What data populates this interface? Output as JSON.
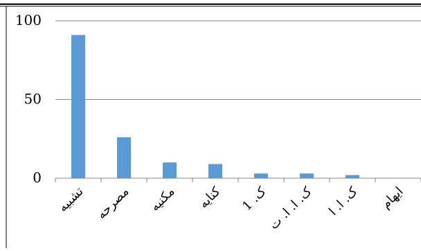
{
  "chart_data": {
    "type": "bar",
    "categories": [
      "تشبیه",
      "مصرحه",
      "مکنیه",
      "کنایه",
      "ک. 1",
      "ک. ا. ا. ت",
      "ک. ا. ا",
      "ایهام"
    ],
    "values": [
      91,
      26,
      10,
      9,
      3,
      3,
      2,
      0
    ],
    "ylim": [
      0,
      100
    ],
    "yticks": [
      0,
      50,
      100
    ],
    "grid": true,
    "legend": "none",
    "colors": {
      "bar": "#5b9bd5",
      "grid": "#868686",
      "axis": "#868686",
      "frame": "#000000"
    }
  }
}
